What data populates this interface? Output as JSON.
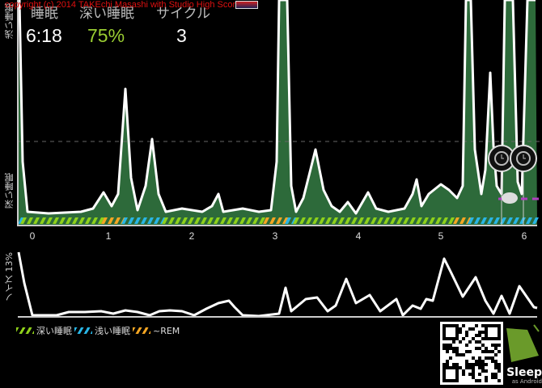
{
  "copyright": "copyright (c) 2014 TAKEchi Masashi with Studio High Score",
  "header": {
    "labels": {
      "sleep": "睡眠",
      "deep_sleep": "深い睡眠",
      "cycles": "サイクル"
    },
    "values": {
      "sleep": "6:18",
      "deep_sleep": "75%",
      "cycles": "3"
    }
  },
  "graph": {
    "top_axis_label": "浅い睡眠",
    "bottom_axis_label": "深い睡眠",
    "x_ticks": [
      "0",
      "1",
      "2",
      "3",
      "4",
      "5",
      "6"
    ]
  },
  "noise": {
    "label": "ノイズ 13%"
  },
  "legend": [
    {
      "label": "深い睡眠",
      "color": "#8fd11a"
    },
    {
      "label": "浅い睡眠",
      "color": "#29b6e6"
    },
    {
      "label": "~REM",
      "color": "#f5a623"
    }
  ],
  "logo": {
    "title": "Sleep",
    "subtitle": "as Android"
  },
  "colors": {
    "fill": "#2d6a3a",
    "deep": "#8fd11a",
    "light": "#29b6e6",
    "rem": "#f5a623",
    "accent": "#9acd32"
  }
}
